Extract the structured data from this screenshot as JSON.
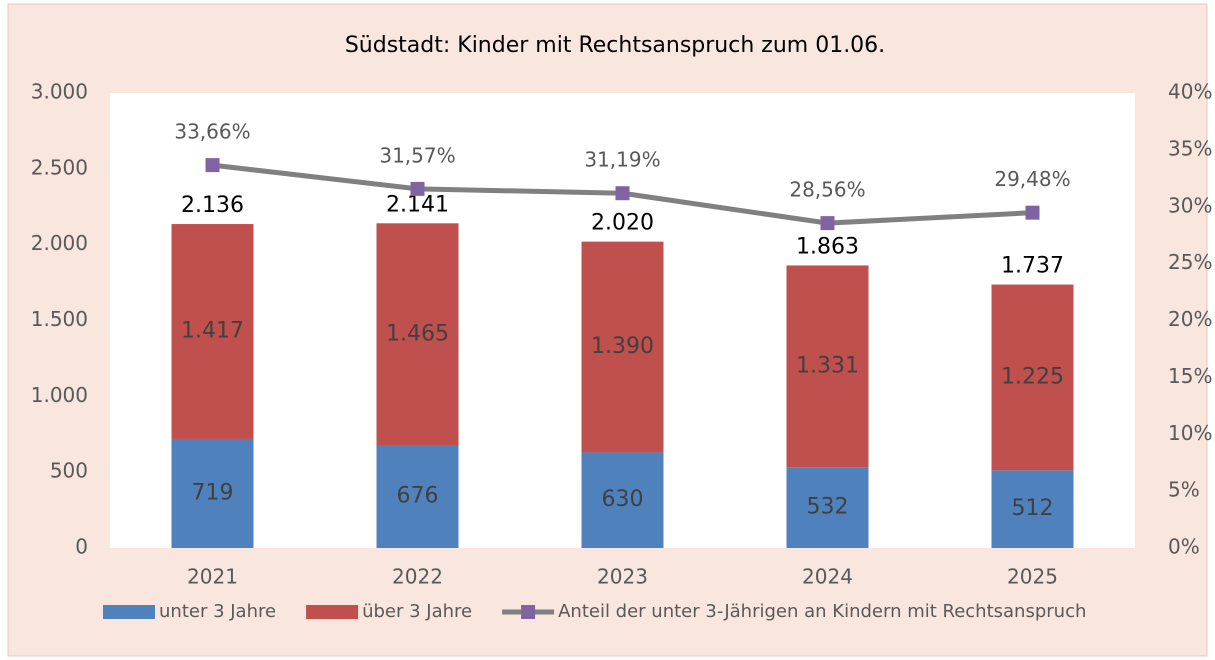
{
  "chart_data": {
    "type": "bar",
    "stacked": true,
    "title": "Südstadt: Kinder mit Rechtsanspruch zum 01.06.",
    "categories": [
      "2021",
      "2022",
      "2023",
      "2024",
      "2025"
    ],
    "series": [
      {
        "name": "unter 3 Jahre",
        "color": "#4f81bd",
        "values": [
          719,
          676,
          630,
          532,
          512
        ],
        "value_labels": [
          "719",
          "676",
          "630",
          "532",
          "512"
        ]
      },
      {
        "name": "über 3 Jahre",
        "color": "#c0504d",
        "values": [
          1417,
          1465,
          1390,
          1331,
          1225
        ],
        "value_labels": [
          "1.417",
          "1.465",
          "1.390",
          "1.331",
          "1.225"
        ]
      },
      {
        "name": "Anteil der unter 3-Jährigen an Kindern mit Rechtsanspruch",
        "type": "line",
        "axis": "y2",
        "color": "#808080",
        "marker_color": "#8064a2",
        "values": [
          33.66,
          31.57,
          31.19,
          28.56,
          29.48
        ],
        "value_labels": [
          "33,66%",
          "31,57%",
          "31,19%",
          "28,56%",
          "29,48%"
        ]
      }
    ],
    "totals": {
      "values": [
        2136,
        2141,
        2020,
        1863,
        1737
      ],
      "value_labels": [
        "2.136",
        "2.141",
        "2.020",
        "1.863",
        "1.737"
      ]
    },
    "ylim": [
      0,
      3000
    ],
    "yticks": [
      0,
      500,
      {
        "value": 1000,
        "label": "1.000"
      },
      {
        "value": 1500,
        "label": "1.500"
      },
      {
        "value": 2000,
        "label": "2.000"
      },
      {
        "value": 2500,
        "label": "2.500"
      },
      {
        "value": 3000,
        "label": "3.000"
      }
    ],
    "y2lim": [
      0,
      40
    ],
    "y2ticks": [
      {
        "value": 0,
        "label": "0%"
      },
      {
        "value": 5,
        "label": "5%"
      },
      {
        "value": 10,
        "label": "10%"
      },
      {
        "value": 15,
        "label": "15%"
      },
      {
        "value": 20,
        "label": "20%"
      },
      {
        "value": 25,
        "label": "25%"
      },
      {
        "value": 30,
        "label": "30%"
      },
      {
        "value": 35,
        "label": "35%"
      },
      {
        "value": 40,
        "label": "40%"
      }
    ],
    "legend": "bottom"
  }
}
